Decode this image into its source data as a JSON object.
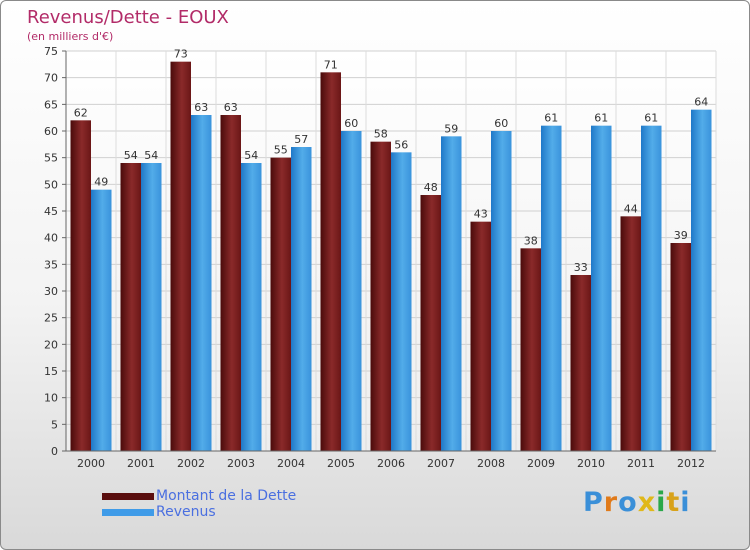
{
  "title": "Revenus/Dette - EOUX",
  "subtitle": "(en milliers d'€)",
  "logo_text": "Proxiti",
  "colors": {
    "debt": "#7a1c1c",
    "revenue": "#3f9be8",
    "title": "#b22b68",
    "legend_text": "#4a6fe0"
  },
  "chart_data": {
    "type": "bar",
    "categories": [
      "2000",
      "2001",
      "2002",
      "2003",
      "2004",
      "2005",
      "2006",
      "2007",
      "2008",
      "2009",
      "2010",
      "2011",
      "2012"
    ],
    "series": [
      {
        "name": "Montant de la Dette",
        "values": [
          62,
          54,
          73,
          63,
          55,
          71,
          58,
          48,
          43,
          38,
          33,
          44,
          39
        ]
      },
      {
        "name": "Revenus",
        "values": [
          49,
          54,
          63,
          54,
          57,
          60,
          56,
          59,
          60,
          61,
          61,
          61,
          64
        ]
      }
    ],
    "ylim": [
      0,
      75
    ],
    "yticks": [
      0,
      5,
      10,
      15,
      20,
      25,
      30,
      35,
      40,
      45,
      50,
      55,
      60,
      65,
      70,
      75
    ],
    "grid": true,
    "legend_position": "bottom-left"
  }
}
